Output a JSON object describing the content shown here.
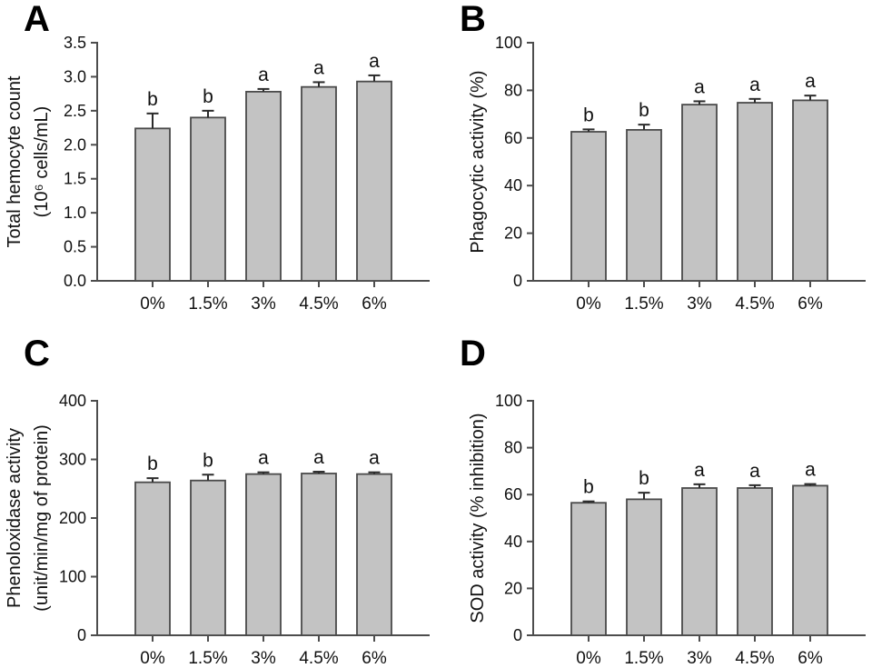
{
  "style": {
    "bar_fill": "#c3c3c3",
    "bar_stroke": "#4a4a4a",
    "axis_color": "#4d4d4d",
    "error_color": "#2b2b2b",
    "text_color": "#111111",
    "background": "#ffffff"
  },
  "chart_data": [
    {
      "panel": "A",
      "type": "bar",
      "ylabel_lines": [
        "Total hemocyte count",
        "(10⁶ cells/mL)"
      ],
      "categories": [
        "0%",
        "1.5%",
        "3%",
        "4.5%",
        "6%"
      ],
      "values": [
        2.24,
        2.4,
        2.78,
        2.85,
        2.93
      ],
      "errors": [
        0.22,
        0.1,
        0.04,
        0.07,
        0.09
      ],
      "sig_letters": [
        "b",
        "b",
        "a",
        "a",
        "a"
      ],
      "ylim": [
        0,
        3.5
      ],
      "yticks": [
        "0.0",
        "0.5",
        "1.0",
        "1.5",
        "2.0",
        "2.5",
        "3.0",
        "3.5"
      ],
      "xlabel": "",
      "legend": null,
      "grid": false
    },
    {
      "panel": "B",
      "type": "bar",
      "ylabel_lines": [
        "Phagocytic activity (%)"
      ],
      "categories": [
        "0%",
        "1.5%",
        "3%",
        "4.5%",
        "6%"
      ],
      "values": [
        62.6,
        63.4,
        74,
        74.8,
        75.8
      ],
      "errors": [
        1,
        2.2,
        1.4,
        1.6,
        2
      ],
      "sig_letters": [
        "b",
        "b",
        "a",
        "a",
        "a"
      ],
      "ylim": [
        0,
        100
      ],
      "yticks": [
        "0",
        "20",
        "40",
        "60",
        "80",
        "100"
      ],
      "xlabel": "",
      "legend": null,
      "grid": false
    },
    {
      "panel": "C",
      "type": "bar",
      "ylabel_lines": [
        "Phenoloxidase activity",
        "(unit/min/mg of protein)"
      ],
      "categories": [
        "0%",
        "1.5%",
        "3%",
        "4.5%",
        "6%"
      ],
      "values": [
        261,
        264,
        275,
        276,
        275
      ],
      "errors": [
        7,
        10,
        3,
        3,
        3
      ],
      "sig_letters": [
        "b",
        "b",
        "a",
        "a",
        "a"
      ],
      "ylim": [
        0,
        400
      ],
      "yticks": [
        "0",
        "100",
        "200",
        "300",
        "400"
      ],
      "xlabel": "",
      "legend": null,
      "grid": false
    },
    {
      "panel": "D",
      "type": "bar",
      "ylabel_lines": [
        "SOD activity (% inhibition)"
      ],
      "categories": [
        "0%",
        "1.5%",
        "3%",
        "4.5%",
        "6%"
      ],
      "values": [
        56.5,
        58,
        62.8,
        62.8,
        63.8
      ],
      "errors": [
        0.6,
        2.8,
        1.6,
        1.2,
        0.7
      ],
      "sig_letters": [
        "b",
        "b",
        "a",
        "a",
        "a"
      ],
      "ylim": [
        0,
        100
      ],
      "yticks": [
        "0",
        "20",
        "40",
        "60",
        "80",
        "100"
      ],
      "xlabel": "",
      "legend": null,
      "grid": false
    }
  ]
}
